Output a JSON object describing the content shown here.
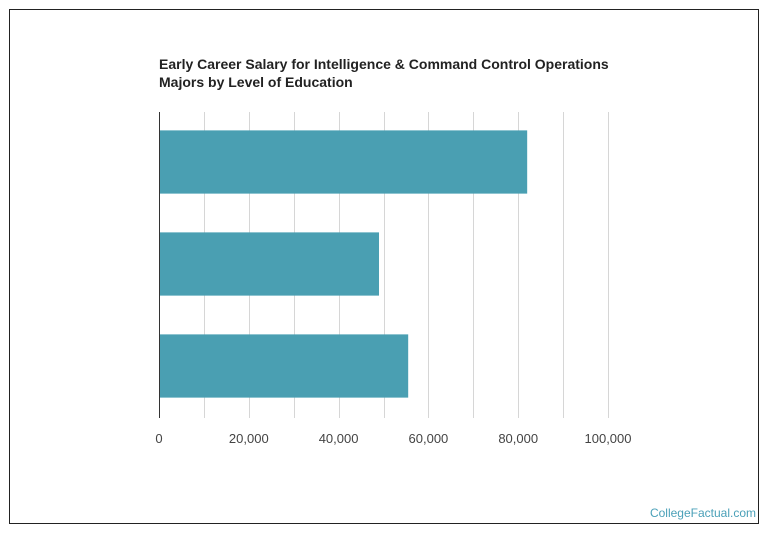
{
  "chart_data": {
    "type": "bar",
    "orientation": "horizontal",
    "title_lines": [
      "Early Career Salary for Intelligence & Command Control Operations",
      "Majors by Level of Education"
    ],
    "categories": [
      "",
      "",
      ""
    ],
    "values": [
      82000,
      49000,
      55500
    ],
    "xlim": [
      0,
      100000
    ],
    "xticks": [
      0,
      20000,
      40000,
      60000,
      80000,
      100000
    ],
    "xtick_labels": [
      "0",
      "20,000",
      "40,000",
      "60,000",
      "80,000",
      "100,000"
    ],
    "xlabel": "",
    "ylabel": "",
    "grid": true,
    "bar_color": "#4a9fb2",
    "grid_color": "#d6d6d6"
  },
  "footer": {
    "credit": "CollegeFactual.com",
    "credit_color": "#4aa0b8"
  }
}
